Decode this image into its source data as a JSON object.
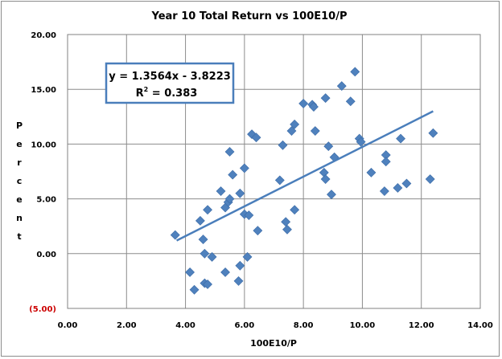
{
  "chart_data": {
    "type": "scatter",
    "title": "Year 10 Total Return vs 100E10/P",
    "xlabel": "100E10/P",
    "ylabel": "Percent",
    "xlim": [
      0,
      14
    ],
    "ylim": [
      -5,
      20
    ],
    "grid": true,
    "x_ticks": [
      "0.00",
      "2.00",
      "4.00",
      "6.00",
      "8.00",
      "10.00",
      "12.00",
      "14.00"
    ],
    "y_ticks": [
      "(5.00)",
      "0.00",
      "5.00",
      "10.00",
      "15.00",
      "20.00"
    ],
    "marker_color": "#4f81bd",
    "trendline": {
      "slope": 1.3564,
      "intercept": -3.8223,
      "x_start": 3.7,
      "x_end": 12.4
    },
    "annotation": {
      "equation": "y = 1.3564x - 3.8223",
      "r2_prefix": "R",
      "r2_exp": "2",
      "r2_rest": " = 0.383"
    },
    "points": [
      {
        "x": 3.65,
        "y": 1.7
      },
      {
        "x": 4.15,
        "y": -1.7
      },
      {
        "x": 4.3,
        "y": -3.3
      },
      {
        "x": 4.5,
        "y": 3.0
      },
      {
        "x": 4.6,
        "y": 1.3
      },
      {
        "x": 4.65,
        "y": 0.0
      },
      {
        "x": 4.65,
        "y": -2.7
      },
      {
        "x": 4.75,
        "y": -2.8
      },
      {
        "x": 4.75,
        "y": 4.0
      },
      {
        "x": 4.9,
        "y": -0.3
      },
      {
        "x": 5.2,
        "y": 5.7
      },
      {
        "x": 5.35,
        "y": 4.2
      },
      {
        "x": 5.35,
        "y": -1.7
      },
      {
        "x": 5.45,
        "y": 4.7
      },
      {
        "x": 5.5,
        "y": 9.3
      },
      {
        "x": 5.5,
        "y": 5.0
      },
      {
        "x": 5.6,
        "y": 7.2
      },
      {
        "x": 5.8,
        "y": -2.5
      },
      {
        "x": 5.85,
        "y": 5.5
      },
      {
        "x": 5.85,
        "y": -1.1
      },
      {
        "x": 6.0,
        "y": 7.8
      },
      {
        "x": 6.0,
        "y": 3.6
      },
      {
        "x": 6.1,
        "y": -0.3
      },
      {
        "x": 6.15,
        "y": 3.5
      },
      {
        "x": 6.25,
        "y": 10.9
      },
      {
        "x": 6.4,
        "y": 10.6
      },
      {
        "x": 6.45,
        "y": 2.1
      },
      {
        "x": 7.2,
        "y": 6.7
      },
      {
        "x": 7.3,
        "y": 9.9
      },
      {
        "x": 7.4,
        "y": 2.9
      },
      {
        "x": 7.45,
        "y": 2.2
      },
      {
        "x": 7.6,
        "y": 11.2
      },
      {
        "x": 7.7,
        "y": 11.8
      },
      {
        "x": 7.7,
        "y": 4.0
      },
      {
        "x": 8.0,
        "y": 13.7
      },
      {
        "x": 8.3,
        "y": 13.6
      },
      {
        "x": 8.35,
        "y": 13.4
      },
      {
        "x": 8.4,
        "y": 11.2
      },
      {
        "x": 8.7,
        "y": 7.4
      },
      {
        "x": 8.75,
        "y": 14.2
      },
      {
        "x": 8.75,
        "y": 6.8
      },
      {
        "x": 8.85,
        "y": 9.8
      },
      {
        "x": 8.95,
        "y": 5.4
      },
      {
        "x": 9.05,
        "y": 8.8
      },
      {
        "x": 9.3,
        "y": 15.3
      },
      {
        "x": 9.6,
        "y": 13.9
      },
      {
        "x": 9.75,
        "y": 16.6
      },
      {
        "x": 9.9,
        "y": 10.5
      },
      {
        "x": 9.95,
        "y": 10.2
      },
      {
        "x": 10.3,
        "y": 7.4
      },
      {
        "x": 10.75,
        "y": 5.7
      },
      {
        "x": 10.8,
        "y": 9.0
      },
      {
        "x": 10.8,
        "y": 8.4
      },
      {
        "x": 11.2,
        "y": 6.0
      },
      {
        "x": 11.3,
        "y": 10.5
      },
      {
        "x": 11.5,
        "y": 6.4
      },
      {
        "x": 12.3,
        "y": 6.8
      },
      {
        "x": 12.4,
        "y": 11.0
      }
    ]
  }
}
